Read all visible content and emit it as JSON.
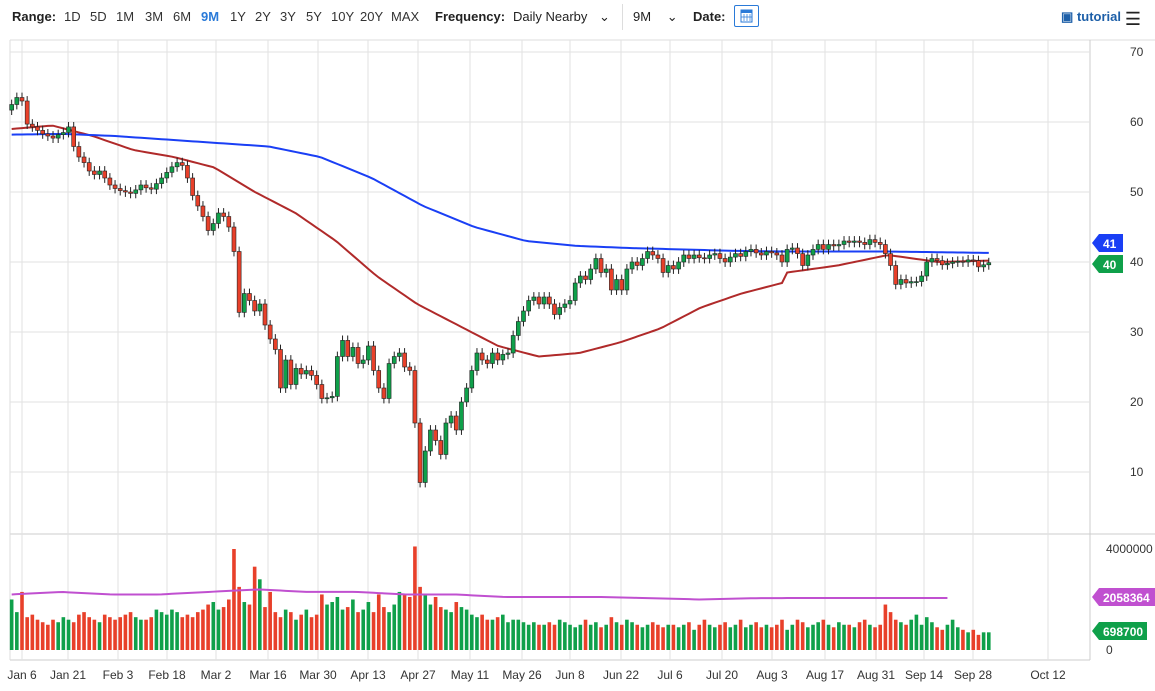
{
  "toolbar": {
    "range_label": "Range:",
    "ranges": [
      "1D",
      "5D",
      "1M",
      "3M",
      "6M",
      "9M",
      "1Y",
      "2Y",
      "3Y",
      "5Y",
      "10Y",
      "20Y",
      "MAX"
    ],
    "selected_range": "9M",
    "frequency_label": "Frequency:",
    "frequency": "Daily Nearby",
    "period": "9M",
    "date_label": "Date:",
    "tutorial": "tutorial"
  },
  "colors": {
    "up": "#0fa04a",
    "down": "#e8402a",
    "ma_short": "#b02a2a",
    "ma_long": "#1a3ff5",
    "volume_avg": "#c050d0"
  },
  "chart_data": {
    "type": "candlestick",
    "y_ticks": [
      "70",
      "60",
      "50",
      "40",
      "30",
      "20",
      "10"
    ],
    "ylim": [
      3,
      72
    ],
    "x_ticks": [
      "Jan 6",
      "Jan 21",
      "Feb 3",
      "Feb 18",
      "Mar 2",
      "Mar 16",
      "Mar 30",
      "Apr 13",
      "Apr 27",
      "May 11",
      "May 26",
      "Jun 8",
      "Jun 22",
      "Jul 6",
      "Jul 20",
      "Aug 3",
      "Aug 17",
      "Aug 31",
      "Sep 14",
      "Sep 28",
      "Oct 12"
    ],
    "closes": [
      62.5,
      63.5,
      63,
      59.7,
      59.3,
      58.8,
      58.3,
      58,
      57.7,
      58.2,
      58.5,
      59.3,
      56.5,
      55,
      54.2,
      53,
      52.5,
      53,
      52,
      51,
      50.5,
      50.2,
      50,
      49.8,
      50.3,
      51,
      50.6,
      50.4,
      51.2,
      52,
      52.8,
      53.6,
      54.2,
      53.8,
      52,
      49.5,
      48,
      46.5,
      44.5,
      45.5,
      47,
      46.5,
      45,
      41.5,
      32.8,
      35.5,
      34.5,
      33,
      34,
      31,
      29,
      27.5,
      22,
      26,
      22.5,
      24.8,
      24,
      24.5,
      23.8,
      22.5,
      20.5,
      20.6,
      20.8,
      26.5,
      28.8,
      26.5,
      27.8,
      25.5,
      26,
      28,
      24.5,
      22,
      20.5,
      25.5,
      26.5,
      27,
      25,
      24.5,
      17,
      8.5,
      13,
      16,
      14.5,
      12.5,
      17,
      18,
      16,
      20,
      22,
      24.5,
      27,
      26,
      25.5,
      27,
      26,
      26.8,
      27,
      29.5,
      31.5,
      33,
      34.5,
      35,
      34,
      35,
      34,
      32.5,
      33.5,
      34,
      34.5,
      37,
      38,
      37.5,
      39,
      40.5,
      38.5,
      39,
      36,
      37.5,
      36,
      39,
      40,
      39.5,
      40.5,
      41.5,
      41,
      40.5,
      38.5,
      39.5,
      39,
      40,
      41,
      40.5,
      41,
      40.6,
      40.5,
      41,
      41.2,
      40.5,
      40,
      40.7,
      41.2,
      40.8,
      41.5,
      41.8,
      41.3,
      41,
      41.5,
      41.3,
      41,
      40,
      41.8,
      42,
      41.2,
      39.5,
      41,
      41.8,
      42.5,
      41.8,
      42.5,
      42.3,
      42.5,
      43,
      42.8,
      43,
      42.8,
      42.5,
      43.2,
      42.8,
      42.5,
      41.2,
      39.5,
      36.8,
      37.5,
      37,
      37.2,
      37.2,
      38,
      40,
      40.5,
      40.2,
      39.6,
      39.8,
      40,
      40.1,
      40,
      40.3,
      40.2,
      39.3,
      39.6,
      39.9
    ],
    "ma_short": [
      59,
      59.5,
      58,
      56,
      55,
      53.5,
      50,
      47,
      43,
      38,
      34,
      31,
      28,
      26.5,
      27,
      28.5,
      30.5,
      33.5,
      35.5,
      37
    ],
    "ma_long": [
      58.2,
      58.3,
      58,
      57.5,
      57,
      56.5,
      55,
      52,
      48,
      45,
      43,
      42.3,
      42,
      41.8,
      41.6,
      41.5,
      41.5,
      41.5,
      41.4,
      41.3
    ],
    "ma_short_tail": [
      38.5,
      39.5,
      41,
      40,
      40.2
    ],
    "last_price_tag": "40",
    "ma_long_tag": "41",
    "volume_ticks": [
      "4000000",
      "0"
    ],
    "volumes_millions": [
      2.0,
      1.5,
      2.3,
      1.3,
      1.4,
      1.2,
      1.1,
      1.0,
      1.2,
      1.1,
      1.3,
      1.2,
      1.1,
      1.4,
      1.5,
      1.3,
      1.2,
      1.1,
      1.4,
      1.3,
      1.2,
      1.3,
      1.4,
      1.5,
      1.3,
      1.2,
      1.2,
      1.3,
      1.6,
      1.5,
      1.4,
      1.6,
      1.5,
      1.3,
      1.4,
      1.3,
      1.5,
      1.6,
      1.8,
      1.9,
      1.6,
      1.7,
      2.0,
      4.0,
      2.5,
      1.9,
      1.8,
      3.3,
      2.8,
      1.7,
      2.3,
      1.5,
      1.3,
      1.6,
      1.5,
      1.2,
      1.4,
      1.6,
      1.3,
      1.4,
      2.2,
      1.8,
      1.9,
      2.1,
      1.6,
      1.7,
      2.0,
      1.5,
      1.6,
      1.9,
      1.5,
      2.2,
      1.7,
      1.5,
      1.8,
      2.3,
      2.2,
      2.1,
      4.1,
      2.5,
      2.2,
      1.8,
      2.1,
      1.7,
      1.6,
      1.5,
      1.9,
      1.7,
      1.6,
      1.4,
      1.3,
      1.4,
      1.2,
      1.2,
      1.3,
      1.4,
      1.1,
      1.2,
      1.2,
      1.1,
      1.0,
      1.1,
      1.0,
      1.0,
      1.1,
      1.0,
      1.2,
      1.1,
      1.0,
      0.9,
      1.0,
      1.2,
      1.0,
      1.1,
      0.9,
      1.0,
      1.3,
      1.1,
      1.0,
      1.2,
      1.1,
      1.0,
      0.9,
      1.0,
      1.1,
      1.0,
      0.9,
      1.0,
      1.0,
      0.9,
      1.0,
      1.1,
      0.8,
      1.0,
      1.2,
      1.0,
      0.9,
      1.0,
      1.1,
      0.9,
      1.0,
      1.2,
      0.9,
      1.0,
      1.1,
      0.9,
      1.0,
      0.9,
      1.0,
      1.2,
      0.8,
      1.0,
      1.2,
      1.1,
      0.9,
      1.0,
      1.1,
      1.2,
      1.0,
      0.9,
      1.1,
      1.0,
      1.0,
      0.9,
      1.1,
      1.2,
      1.0,
      0.9,
      1.0,
      1.8,
      1.5,
      1.2,
      1.1,
      1.0,
      1.2,
      1.4,
      1.0,
      1.3,
      1.1,
      0.9,
      0.8,
      1.0,
      1.2,
      0.9,
      0.8,
      0.7,
      0.8,
      0.6,
      0.7,
      0.7
    ],
    "volume_avg_millions": [
      2.2,
      2.3,
      2.2,
      2.2,
      2.3,
      2.4,
      2.3,
      2.3,
      2.2,
      2.2,
      2.1,
      2.1,
      2.1,
      2.05,
      2.0,
      2.05,
      2.06,
      2.06,
      2.06,
      2.06
    ],
    "volume_avg_tag": "2058364",
    "last_volume_tag": "698700"
  }
}
